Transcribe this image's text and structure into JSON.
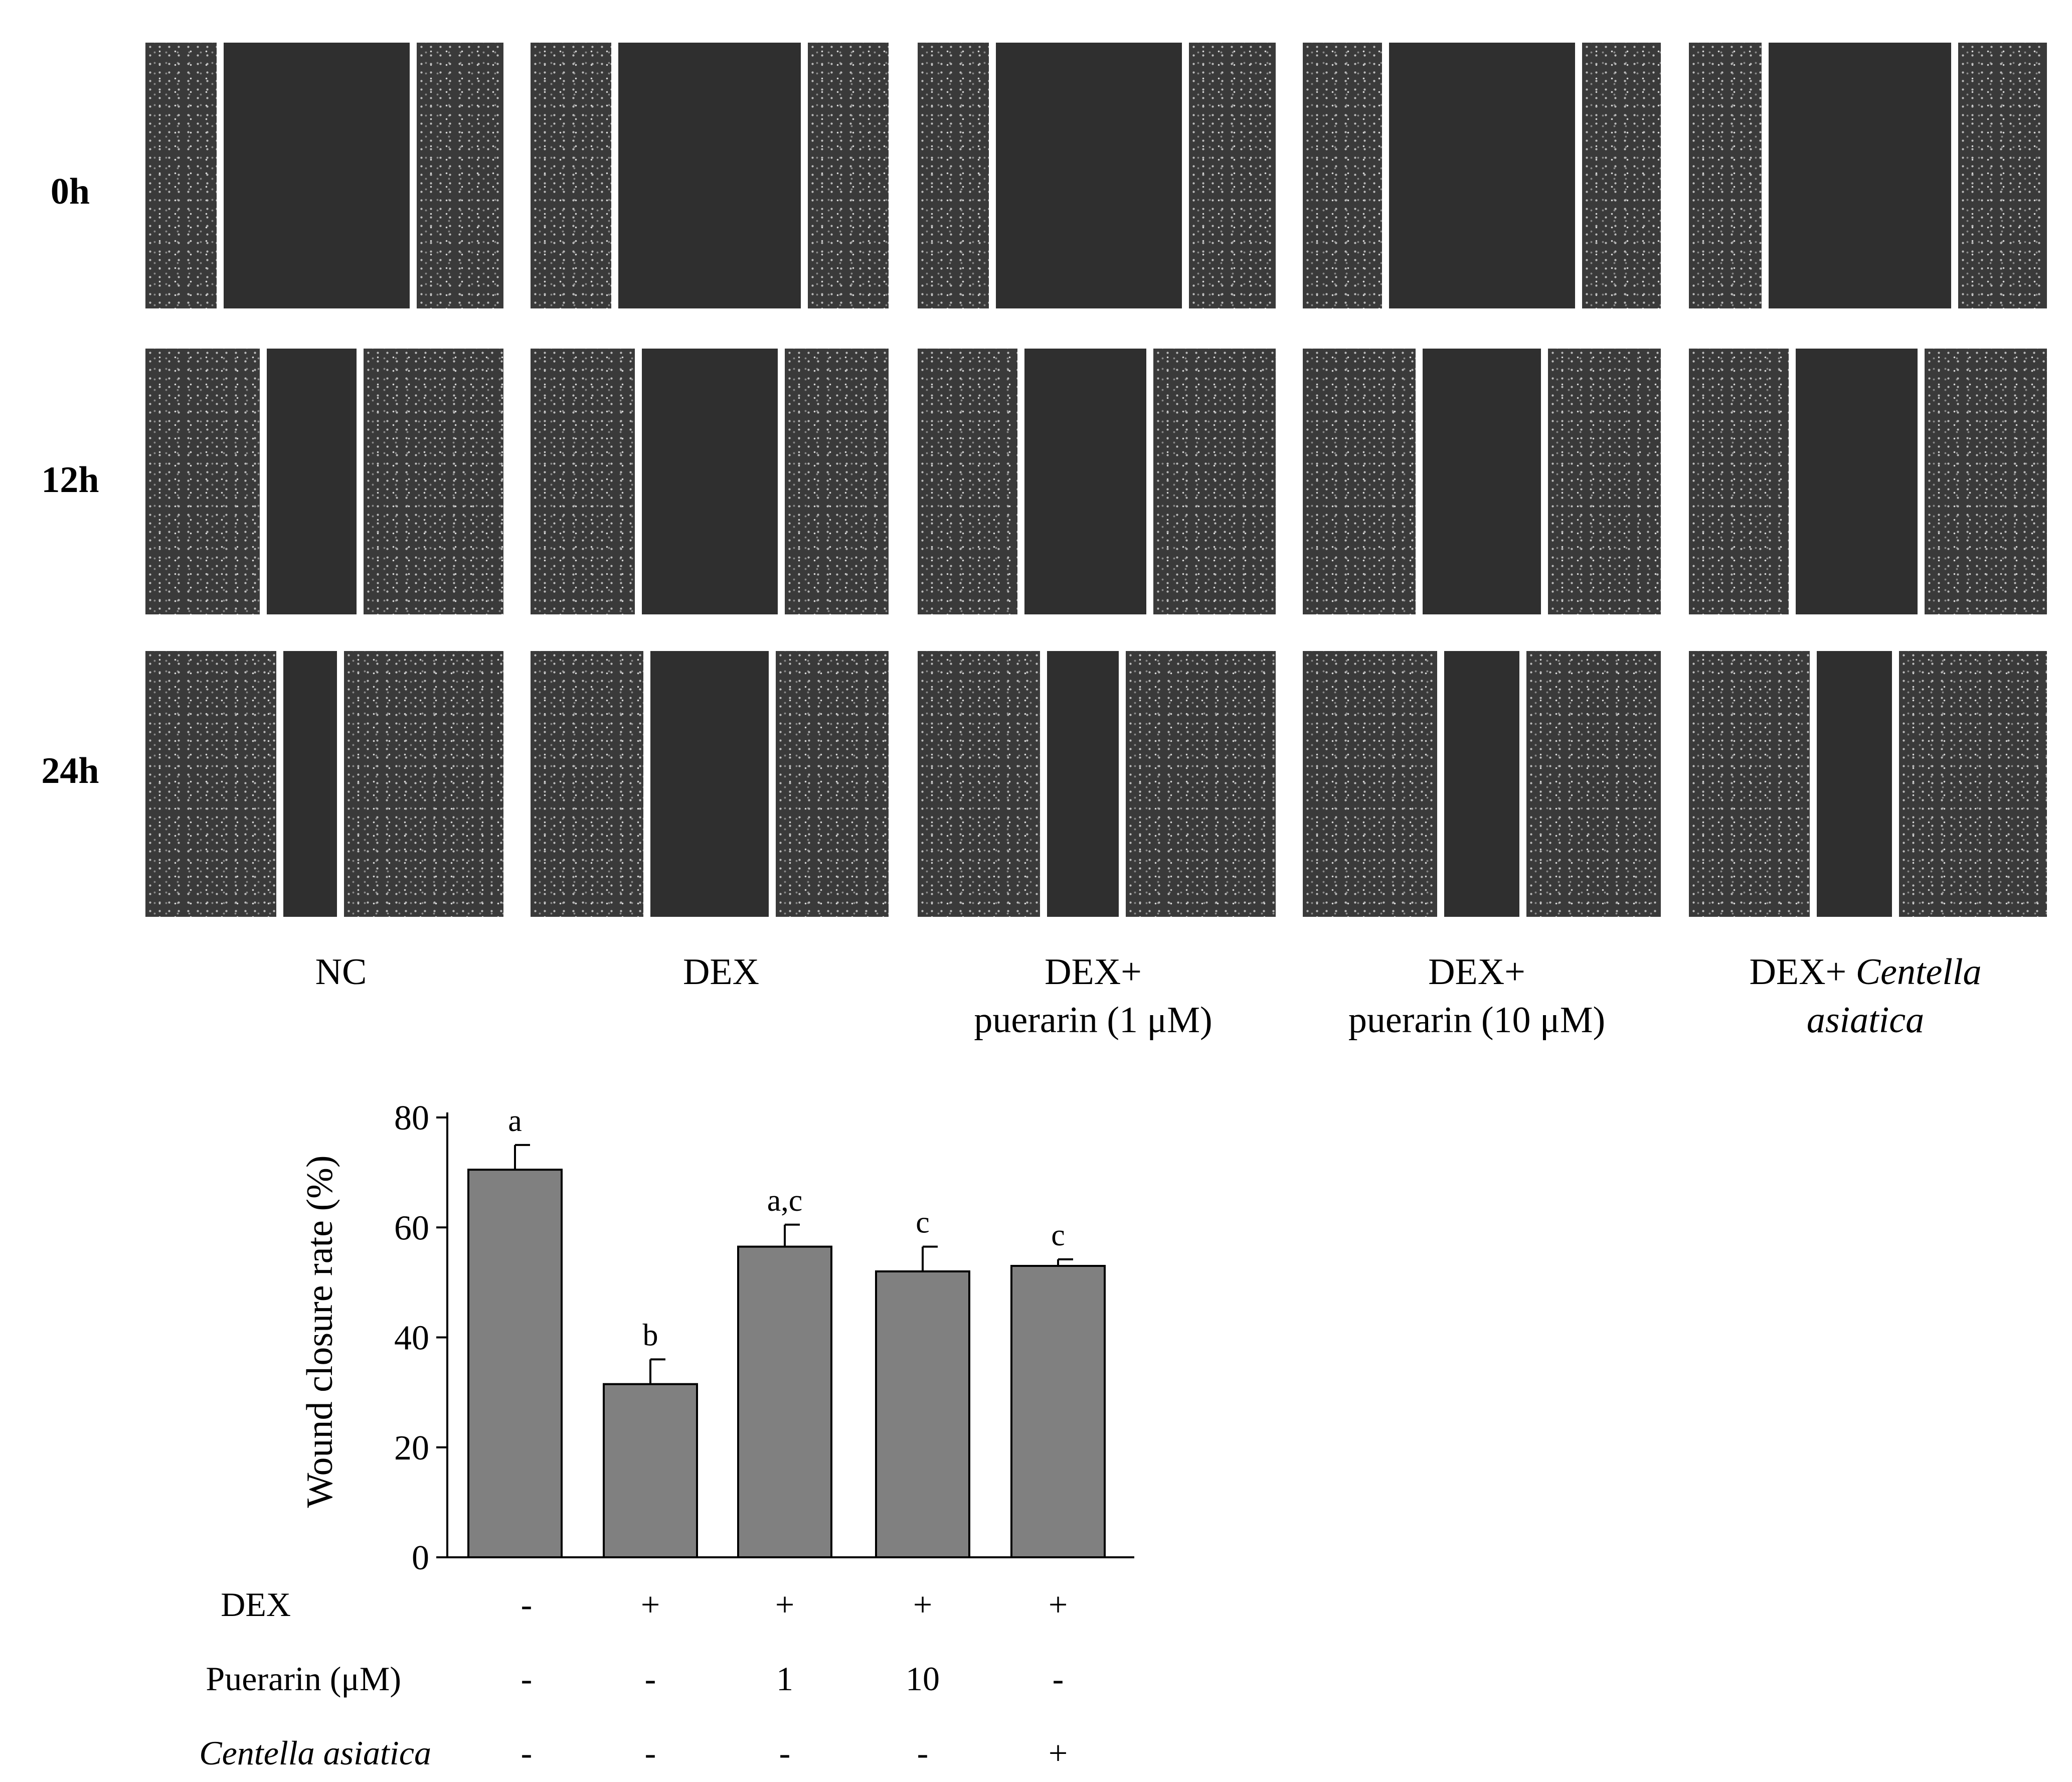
{
  "figure": {
    "row_labels": [
      "0h",
      "12h",
      "24h"
    ],
    "column_labels": [
      {
        "line1": "NC",
        "line2": "",
        "line2_italic": false
      },
      {
        "line1": "DEX",
        "line2": "",
        "line2_italic": false
      },
      {
        "line1": "DEX+",
        "line2": "puerarin (1 μM)",
        "line2_italic": false
      },
      {
        "line1": "DEX+",
        "line2": "puerarin (10 μM)",
        "line2_italic": false
      },
      {
        "line1": "DEX+",
        "line1_italic_suffix": "Centella",
        "line2": "asiatica",
        "line2_italic": true
      }
    ],
    "micrograph_colors": {
      "cells": "#3a3a3a",
      "speckle": "#bdbdbd",
      "wound": "#2f2f2f",
      "divider": "#ffffff"
    },
    "wound_gap_fraction": [
      [
        0.52,
        0.51,
        0.52,
        0.52,
        0.51
      ],
      [
        0.25,
        0.38,
        0.34,
        0.33,
        0.34
      ],
      [
        0.15,
        0.33,
        0.2,
        0.21,
        0.21
      ]
    ]
  },
  "chart_data": {
    "type": "bar",
    "title": "",
    "xlabel": "",
    "ylabel": "Wound closure rate (%)",
    "ylim": [
      0,
      80
    ],
    "yticks": [
      0,
      20,
      40,
      60,
      80
    ],
    "bar_color": "#808080",
    "series": [
      {
        "values": [
          70.5,
          31.5,
          56.5,
          52.0,
          53.0
        ],
        "errors": [
          4.5,
          4.5,
          4.0,
          4.5,
          1.2
        ],
        "significance": [
          "a",
          "b",
          "a,c",
          "c",
          "c"
        ]
      }
    ],
    "treatment_table": {
      "rows": [
        {
          "label": "DEX",
          "label_italic": false,
          "values": [
            "-",
            "+",
            "+",
            "+",
            "+"
          ]
        },
        {
          "label": "Puerarin (μM)",
          "label_italic": false,
          "values": [
            "-",
            "-",
            "1",
            "10",
            "-"
          ]
        },
        {
          "label": "Centella asiatica",
          "label_italic": true,
          "values": [
            "-",
            "-",
            "-",
            "-",
            "+"
          ]
        }
      ]
    }
  }
}
